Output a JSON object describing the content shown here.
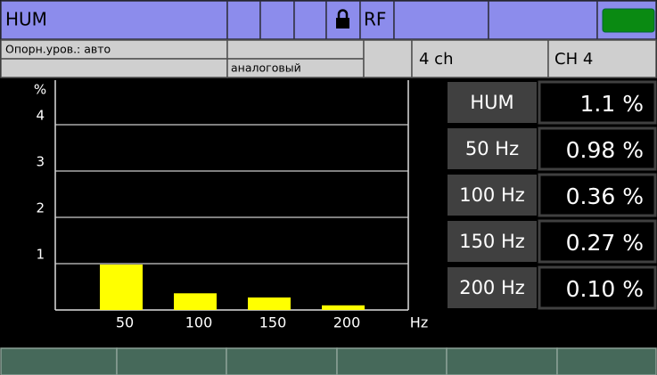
{
  "header": {
    "title": "HUM",
    "rf": "RF"
  },
  "status": {
    "reference": "Опорн.уров.: авто",
    "mode": "аналоговый",
    "channels": "4 ch",
    "channel": "CH 4"
  },
  "chart_data": {
    "type": "bar",
    "y_label": "%",
    "x_label": "Hz",
    "categories": [
      "50",
      "100",
      "150",
      "200"
    ],
    "values": [
      0.98,
      0.36,
      0.27,
      0.1
    ],
    "color": "#ffff00",
    "ylim": [
      0,
      5
    ],
    "yticks": [
      1,
      2,
      3,
      4
    ],
    "grid": true
  },
  "readings": [
    {
      "label": "HUM",
      "value": "1.1 %"
    },
    {
      "label": "50 Hz",
      "value": "0.98 %"
    },
    {
      "label": "100 Hz",
      "value": "0.36 %"
    },
    {
      "label": "150 Hz",
      "value": "0.27 %"
    },
    {
      "label": "200 Hz",
      "value": "0.10 %"
    }
  ]
}
